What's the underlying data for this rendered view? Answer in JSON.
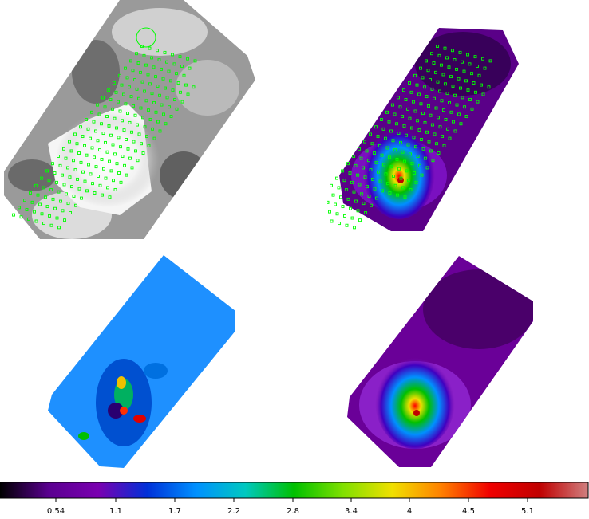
{
  "colorbar": {
    "colormap": "spectral",
    "ticks": [
      "0.54",
      "1.1",
      "1.7",
      "2.2",
      "2.8",
      "3.4",
      "4",
      "4.5",
      "5.1"
    ],
    "stops": [
      "#000000",
      "#5a0090",
      "#7a00b0",
      "#0030d8",
      "#0090ff",
      "#00c8c0",
      "#00c000",
      "#80e000",
      "#f0e000",
      "#ff8000",
      "#f00000",
      "#c00000",
      "#d08080"
    ]
  },
  "panels": {
    "top_left": {
      "colormap": "grayscale",
      "marker_color": "#00ff00"
    },
    "top_right": {
      "colormap": "spectral",
      "marker_color": "#00ff00"
    },
    "bottom_left": {
      "colormap": "spectral"
    },
    "bottom_right": {
      "colormap": "spectral"
    }
  }
}
